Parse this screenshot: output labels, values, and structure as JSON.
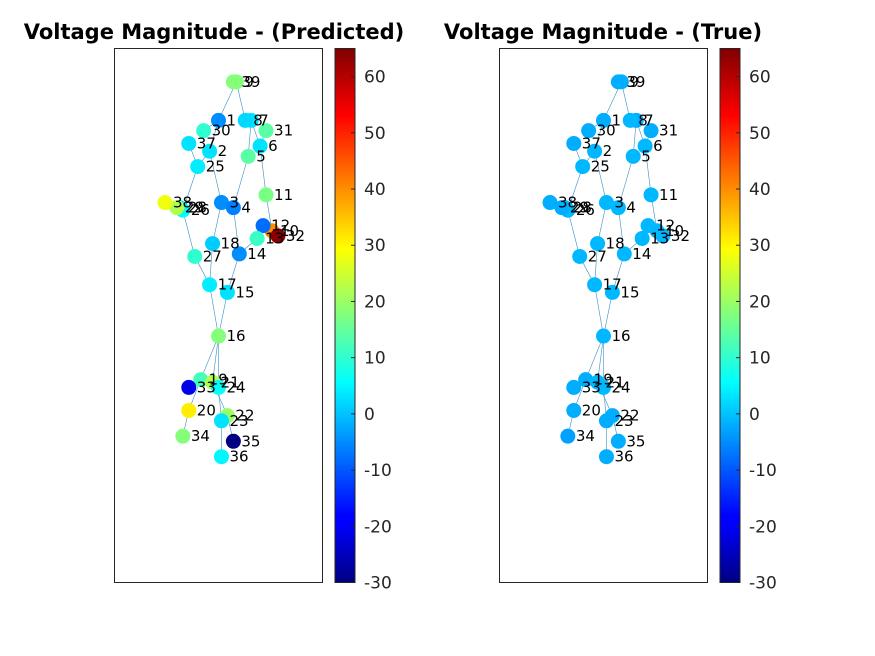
{
  "colors": {
    "edge": "#3a8fc8",
    "axes_frame": "#262626",
    "node_stroke": "none"
  },
  "colormap": "jet",
  "chart_data": [
    {
      "type": "network-graph",
      "title": "Voltage Magnitude - (Predicted)",
      "color_scale": {
        "min": -30,
        "max": 65,
        "ticks": [
          "60",
          "50",
          "40",
          "30",
          "20",
          "10",
          "0",
          "-10",
          "-20",
          "-30"
        ]
      },
      "nodes": [
        {
          "id": "1",
          "x": 4.0,
          "y": 10.0,
          "value": -5
        },
        {
          "id": "2",
          "x": 3.7,
          "y": 8.8,
          "value": 3
        },
        {
          "id": "3",
          "x": 4.1,
          "y": 6.8,
          "value": -5
        },
        {
          "id": "4",
          "x": 4.5,
          "y": 6.6,
          "value": -6
        },
        {
          "id": "5",
          "x": 5.0,
          "y": 8.6,
          "value": 14
        },
        {
          "id": "6",
          "x": 5.4,
          "y": 9.0,
          "value": 3
        },
        {
          "id": "7",
          "x": 5.1,
          "y": 10.0,
          "value": 3
        },
        {
          "id": "8",
          "x": 4.9,
          "y": 10.0,
          "value": 2
        },
        {
          "id": "9",
          "x": 4.6,
          "y": 11.5,
          "value": 18
        },
        {
          "id": "10",
          "x": 5.8,
          "y": 5.7,
          "value": 40
        },
        {
          "id": "11",
          "x": 5.6,
          "y": 7.1,
          "value": 17
        },
        {
          "id": "12",
          "x": 5.5,
          "y": 5.9,
          "value": -8
        },
        {
          "id": "13",
          "x": 5.3,
          "y": 5.4,
          "value": 11
        },
        {
          "id": "14",
          "x": 4.7,
          "y": 4.8,
          "value": -5
        },
        {
          "id": "15",
          "x": 4.3,
          "y": 3.3,
          "value": 3
        },
        {
          "id": "16",
          "x": 4.0,
          "y": 1.6,
          "value": 18
        },
        {
          "id": "17",
          "x": 3.7,
          "y": 3.6,
          "value": 4
        },
        {
          "id": "18",
          "x": 3.8,
          "y": 5.2,
          "value": 1
        },
        {
          "id": "19",
          "x": 3.4,
          "y": -0.1,
          "value": 12
        },
        {
          "id": "20",
          "x": 3.0,
          "y": -1.3,
          "value": 31
        },
        {
          "id": "21",
          "x": 3.8,
          "y": -0.2,
          "value": 22
        },
        {
          "id": "22",
          "x": 4.3,
          "y": -1.5,
          "value": 20
        },
        {
          "id": "23",
          "x": 4.1,
          "y": -1.7,
          "value": 3
        },
        {
          "id": "24",
          "x": 4.0,
          "y": -0.4,
          "value": 6
        },
        {
          "id": "25",
          "x": 3.3,
          "y": 8.2,
          "value": 4
        },
        {
          "id": "26",
          "x": 2.8,
          "y": 6.5,
          "value": 6
        },
        {
          "id": "27",
          "x": 3.2,
          "y": 4.7,
          "value": 10
        },
        {
          "id": "28",
          "x": 2.7,
          "y": 6.6,
          "value": 5
        },
        {
          "id": "29",
          "x": 2.6,
          "y": 6.6,
          "value": 22
        },
        {
          "id": "30",
          "x": 3.5,
          "y": 9.6,
          "value": 10
        },
        {
          "id": "31",
          "x": 5.6,
          "y": 9.6,
          "value": 14
        },
        {
          "id": "32",
          "x": 6.0,
          "y": 5.5,
          "value": 64
        },
        {
          "id": "33",
          "x": 3.0,
          "y": -0.4,
          "value": -20
        },
        {
          "id": "34",
          "x": 2.8,
          "y": -2.3,
          "value": 18
        },
        {
          "id": "35",
          "x": 4.5,
          "y": -2.5,
          "value": -30
        },
        {
          "id": "36",
          "x": 4.1,
          "y": -3.1,
          "value": 5
        },
        {
          "id": "37",
          "x": 3.0,
          "y": 9.1,
          "value": 3
        },
        {
          "id": "38",
          "x": 2.2,
          "y": 6.8,
          "value": 28
        },
        {
          "id": "39",
          "x": 4.5,
          "y": 11.5,
          "value": 18
        }
      ]
    },
    {
      "type": "network-graph",
      "title": "Voltage Magnitude - (True)",
      "color_scale": {
        "min": -30,
        "max": 65,
        "ticks": [
          "60",
          "50",
          "40",
          "30",
          "20",
          "10",
          "0",
          "-10",
          "-20",
          "-30"
        ]
      },
      "nodes": [
        {
          "id": "1",
          "x": 4.0,
          "y": 10.0,
          "value": -2
        },
        {
          "id": "2",
          "x": 3.7,
          "y": 8.8,
          "value": -1
        },
        {
          "id": "3",
          "x": 4.1,
          "y": 6.8,
          "value": -1
        },
        {
          "id": "4",
          "x": 4.5,
          "y": 6.6,
          "value": -1
        },
        {
          "id": "5",
          "x": 5.0,
          "y": 8.6,
          "value": -1
        },
        {
          "id": "6",
          "x": 5.4,
          "y": 9.0,
          "value": -1
        },
        {
          "id": "7",
          "x": 5.1,
          "y": 10.0,
          "value": -2
        },
        {
          "id": "8",
          "x": 4.9,
          "y": 10.0,
          "value": -1
        },
        {
          "id": "9",
          "x": 4.6,
          "y": 11.5,
          "value": -2
        },
        {
          "id": "10",
          "x": 5.8,
          "y": 5.7,
          "value": -1
        },
        {
          "id": "11",
          "x": 5.6,
          "y": 7.1,
          "value": -1
        },
        {
          "id": "12",
          "x": 5.5,
          "y": 5.9,
          "value": -1
        },
        {
          "id": "13",
          "x": 5.3,
          "y": 5.4,
          "value": -1
        },
        {
          "id": "14",
          "x": 4.7,
          "y": 4.8,
          "value": -1
        },
        {
          "id": "15",
          "x": 4.3,
          "y": 3.3,
          "value": -1
        },
        {
          "id": "16",
          "x": 4.0,
          "y": 1.6,
          "value": -1
        },
        {
          "id": "17",
          "x": 3.7,
          "y": 3.6,
          "value": -1
        },
        {
          "id": "18",
          "x": 3.8,
          "y": 5.2,
          "value": -1
        },
        {
          "id": "19",
          "x": 3.4,
          "y": -0.1,
          "value": -2
        },
        {
          "id": "20",
          "x": 3.0,
          "y": -1.3,
          "value": -2
        },
        {
          "id": "21",
          "x": 3.8,
          "y": -0.2,
          "value": -1
        },
        {
          "id": "22",
          "x": 4.3,
          "y": -1.5,
          "value": -2
        },
        {
          "id": "23",
          "x": 4.1,
          "y": -1.7,
          "value": -2
        },
        {
          "id": "24",
          "x": 4.0,
          "y": -0.4,
          "value": -1
        },
        {
          "id": "25",
          "x": 3.3,
          "y": 8.2,
          "value": -1
        },
        {
          "id": "26",
          "x": 2.8,
          "y": 6.5,
          "value": -1
        },
        {
          "id": "27",
          "x": 3.2,
          "y": 4.7,
          "value": -1
        },
        {
          "id": "28",
          "x": 2.7,
          "y": 6.6,
          "value": -1
        },
        {
          "id": "29",
          "x": 2.6,
          "y": 6.6,
          "value": -2
        },
        {
          "id": "30",
          "x": 3.5,
          "y": 9.6,
          "value": -2
        },
        {
          "id": "31",
          "x": 5.6,
          "y": 9.6,
          "value": -2
        },
        {
          "id": "32",
          "x": 6.0,
          "y": 5.5,
          "value": -1
        },
        {
          "id": "33",
          "x": 3.0,
          "y": -0.4,
          "value": -2
        },
        {
          "id": "34",
          "x": 2.8,
          "y": -2.3,
          "value": -3
        },
        {
          "id": "35",
          "x": 4.5,
          "y": -2.5,
          "value": -2
        },
        {
          "id": "36",
          "x": 4.1,
          "y": -3.1,
          "value": -2
        },
        {
          "id": "37",
          "x": 3.0,
          "y": 9.1,
          "value": -2
        },
        {
          "id": "38",
          "x": 2.2,
          "y": 6.8,
          "value": -2
        },
        {
          "id": "39",
          "x": 4.5,
          "y": 11.5,
          "value": -2
        }
      ]
    }
  ],
  "edges": [
    [
      "39",
      "9"
    ],
    [
      "9",
      "8"
    ],
    [
      "9",
      "1"
    ],
    [
      "1",
      "30"
    ],
    [
      "1",
      "2"
    ],
    [
      "2",
      "25"
    ],
    [
      "2",
      "3"
    ],
    [
      "25",
      "37"
    ],
    [
      "25",
      "26"
    ],
    [
      "8",
      "7"
    ],
    [
      "7",
      "6"
    ],
    [
      "7",
      "5"
    ],
    [
      "6",
      "31"
    ],
    [
      "6",
      "11"
    ],
    [
      "5",
      "4"
    ],
    [
      "11",
      "10"
    ],
    [
      "10",
      "32"
    ],
    [
      "10",
      "12"
    ],
    [
      "12",
      "13"
    ],
    [
      "13",
      "14"
    ],
    [
      "4",
      "3"
    ],
    [
      "4",
      "14"
    ],
    [
      "3",
      "18"
    ],
    [
      "18",
      "17"
    ],
    [
      "14",
      "15"
    ],
    [
      "26",
      "28"
    ],
    [
      "26",
      "27"
    ],
    [
      "28",
      "29"
    ],
    [
      "29",
      "38"
    ],
    [
      "27",
      "17"
    ],
    [
      "17",
      "16"
    ],
    [
      "15",
      "16"
    ],
    [
      "16",
      "19"
    ],
    [
      "16",
      "21"
    ],
    [
      "16",
      "24"
    ],
    [
      "19",
      "20"
    ],
    [
      "19",
      "33"
    ],
    [
      "21",
      "22"
    ],
    [
      "22",
      "23"
    ],
    [
      "22",
      "35"
    ],
    [
      "23",
      "36"
    ],
    [
      "20",
      "34"
    ],
    [
      "24",
      "23"
    ]
  ]
}
